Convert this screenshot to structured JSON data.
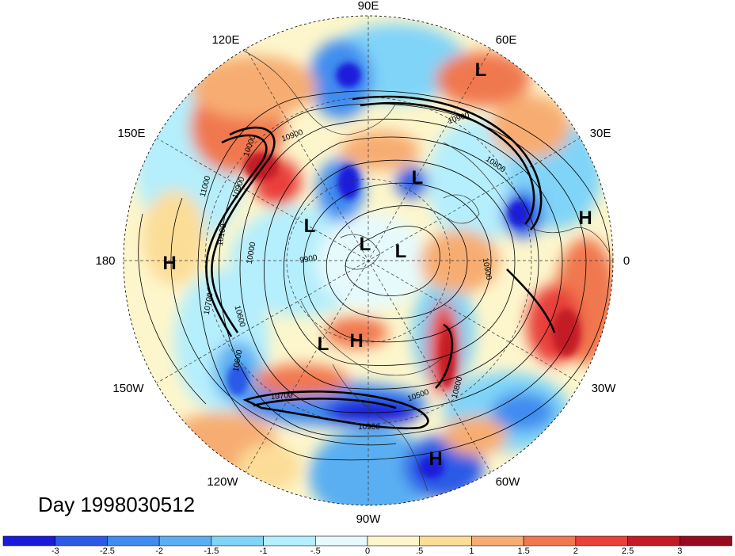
{
  "map": {
    "projection": "north-polar-stereographic",
    "longitude_labels": [
      "90E",
      "60E",
      "30E",
      "0",
      "30W",
      "60W",
      "90W",
      "120W",
      "150W",
      "180",
      "150E",
      "120E"
    ],
    "pressure_centers": [
      {
        "type": "L",
        "label": "L"
      },
      {
        "type": "L",
        "label": "L"
      },
      {
        "type": "L",
        "label": "L"
      },
      {
        "type": "L",
        "label": "L"
      },
      {
        "type": "L",
        "label": "L"
      },
      {
        "type": "L",
        "label": "L"
      },
      {
        "type": "H",
        "label": "H"
      },
      {
        "type": "H",
        "label": "H"
      },
      {
        "type": "H",
        "label": "H"
      },
      {
        "type": "H",
        "label": "H"
      }
    ],
    "contour_labels": [
      "10900",
      "10800",
      "10900",
      "11000",
      "10000",
      "10100",
      "10900",
      "9900",
      "10600",
      "10000",
      "10500",
      "10800",
      "10900",
      "10700",
      "10600",
      "10700",
      "10900"
    ],
    "date_label": "Day 1998030512"
  },
  "colorbar": {
    "tick_labels": [
      "-3",
      "-2.5",
      "-2",
      "-1.5",
      "-1",
      "-.5",
      "0",
      ".5",
      "1",
      "1.5",
      "2",
      "2.5",
      "3"
    ],
    "colors": [
      "#1a1adb",
      "#2c5ae6",
      "#3f8cf0",
      "#5aaff2",
      "#80d4f8",
      "#b5eefc",
      "#e6fafd",
      "#fdf6cc",
      "#fcdd98",
      "#f7ad72",
      "#f0784f",
      "#e8403a",
      "#c41a26",
      "#9a0a1e"
    ]
  }
}
